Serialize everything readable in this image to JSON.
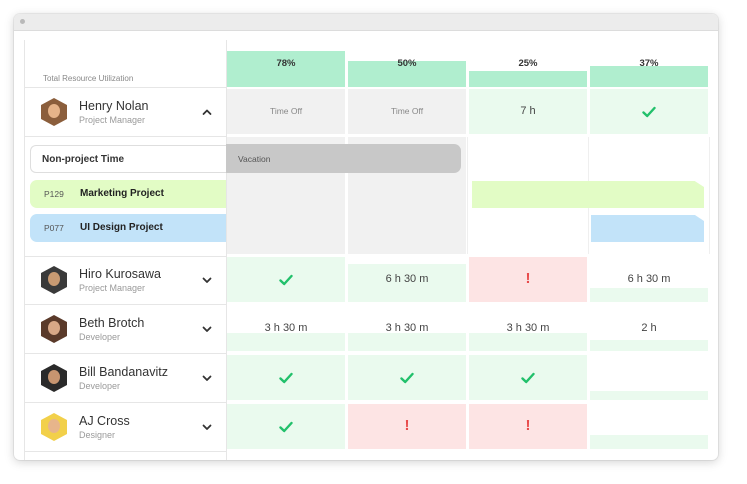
{
  "header": {
    "total_label": "Total Resource Utilization"
  },
  "utilization": [
    {
      "label": "78%",
      "value": 78
    },
    {
      "label": "50%",
      "value": 50
    },
    {
      "label": "25%",
      "value": 25
    },
    {
      "label": "37%",
      "value": 37
    }
  ],
  "people": [
    {
      "name": "Henry Nolan",
      "role": "Project Manager",
      "expanded": true,
      "cells": [
        {
          "type": "timeoff",
          "text": "Time Off"
        },
        {
          "type": "timeoff",
          "text": "Time Off"
        },
        {
          "type": "hours",
          "text": "7 h",
          "fill": 1.0
        },
        {
          "type": "check",
          "fill": 1.0
        }
      ]
    },
    {
      "name": "Hiro Kurosawa",
      "role": "Project Manager",
      "expanded": false,
      "cells": [
        {
          "type": "check",
          "fill": 1.0
        },
        {
          "type": "hours",
          "text": "6 h 30 m",
          "fill": 0.85
        },
        {
          "type": "over",
          "fill": 1.0
        },
        {
          "type": "hours",
          "text": "6 h 30 m",
          "fill": 0.3
        }
      ]
    },
    {
      "name": "Beth Brotch",
      "role": "Developer",
      "expanded": false,
      "cells": [
        {
          "type": "hours",
          "text": "3 h 30 m",
          "fill": 0.4
        },
        {
          "type": "hours",
          "text": "3 h 30 m",
          "fill": 0.4
        },
        {
          "type": "hours",
          "text": "3 h 30 m",
          "fill": 0.4
        },
        {
          "type": "hours",
          "text": "2 h",
          "fill": 0.25
        }
      ]
    },
    {
      "name": "Bill Bandanavitz",
      "role": "Developer",
      "expanded": false,
      "cells": [
        {
          "type": "check",
          "fill": 1.0
        },
        {
          "type": "check",
          "fill": 1.0
        },
        {
          "type": "check",
          "fill": 1.0
        },
        {
          "type": "empty",
          "fill": 0.2
        }
      ]
    },
    {
      "name": "AJ Cross",
      "role": "Designer",
      "expanded": false,
      "cells": [
        {
          "type": "check",
          "fill": 1.0
        },
        {
          "type": "over",
          "fill": 1.0
        },
        {
          "type": "over",
          "fill": 1.0
        },
        {
          "type": "empty",
          "fill": 0.3
        }
      ]
    }
  ],
  "non_project": {
    "label": "Non-project Time",
    "vacation_label": "Vacation"
  },
  "projects": [
    {
      "code": "P129",
      "name": "Marketing Project",
      "color": "#e2fcc5"
    },
    {
      "code": "P077",
      "name": "UI Design Project",
      "color": "#c2e3f9"
    }
  ],
  "colors": {
    "ok_fill": "#eafaee",
    "util_bar": "#b0eecf",
    "over_fill": "#fde4e4",
    "timeoff_fill": "#f1f1f1",
    "vacation": "#c8c8c8",
    "check": "#22c06b",
    "alert": "#e84b4b"
  },
  "icons": {
    "check": "check-icon",
    "alert": "exclamation-icon",
    "expand": "chevron-down-icon",
    "collapse": "chevron-up-icon"
  }
}
